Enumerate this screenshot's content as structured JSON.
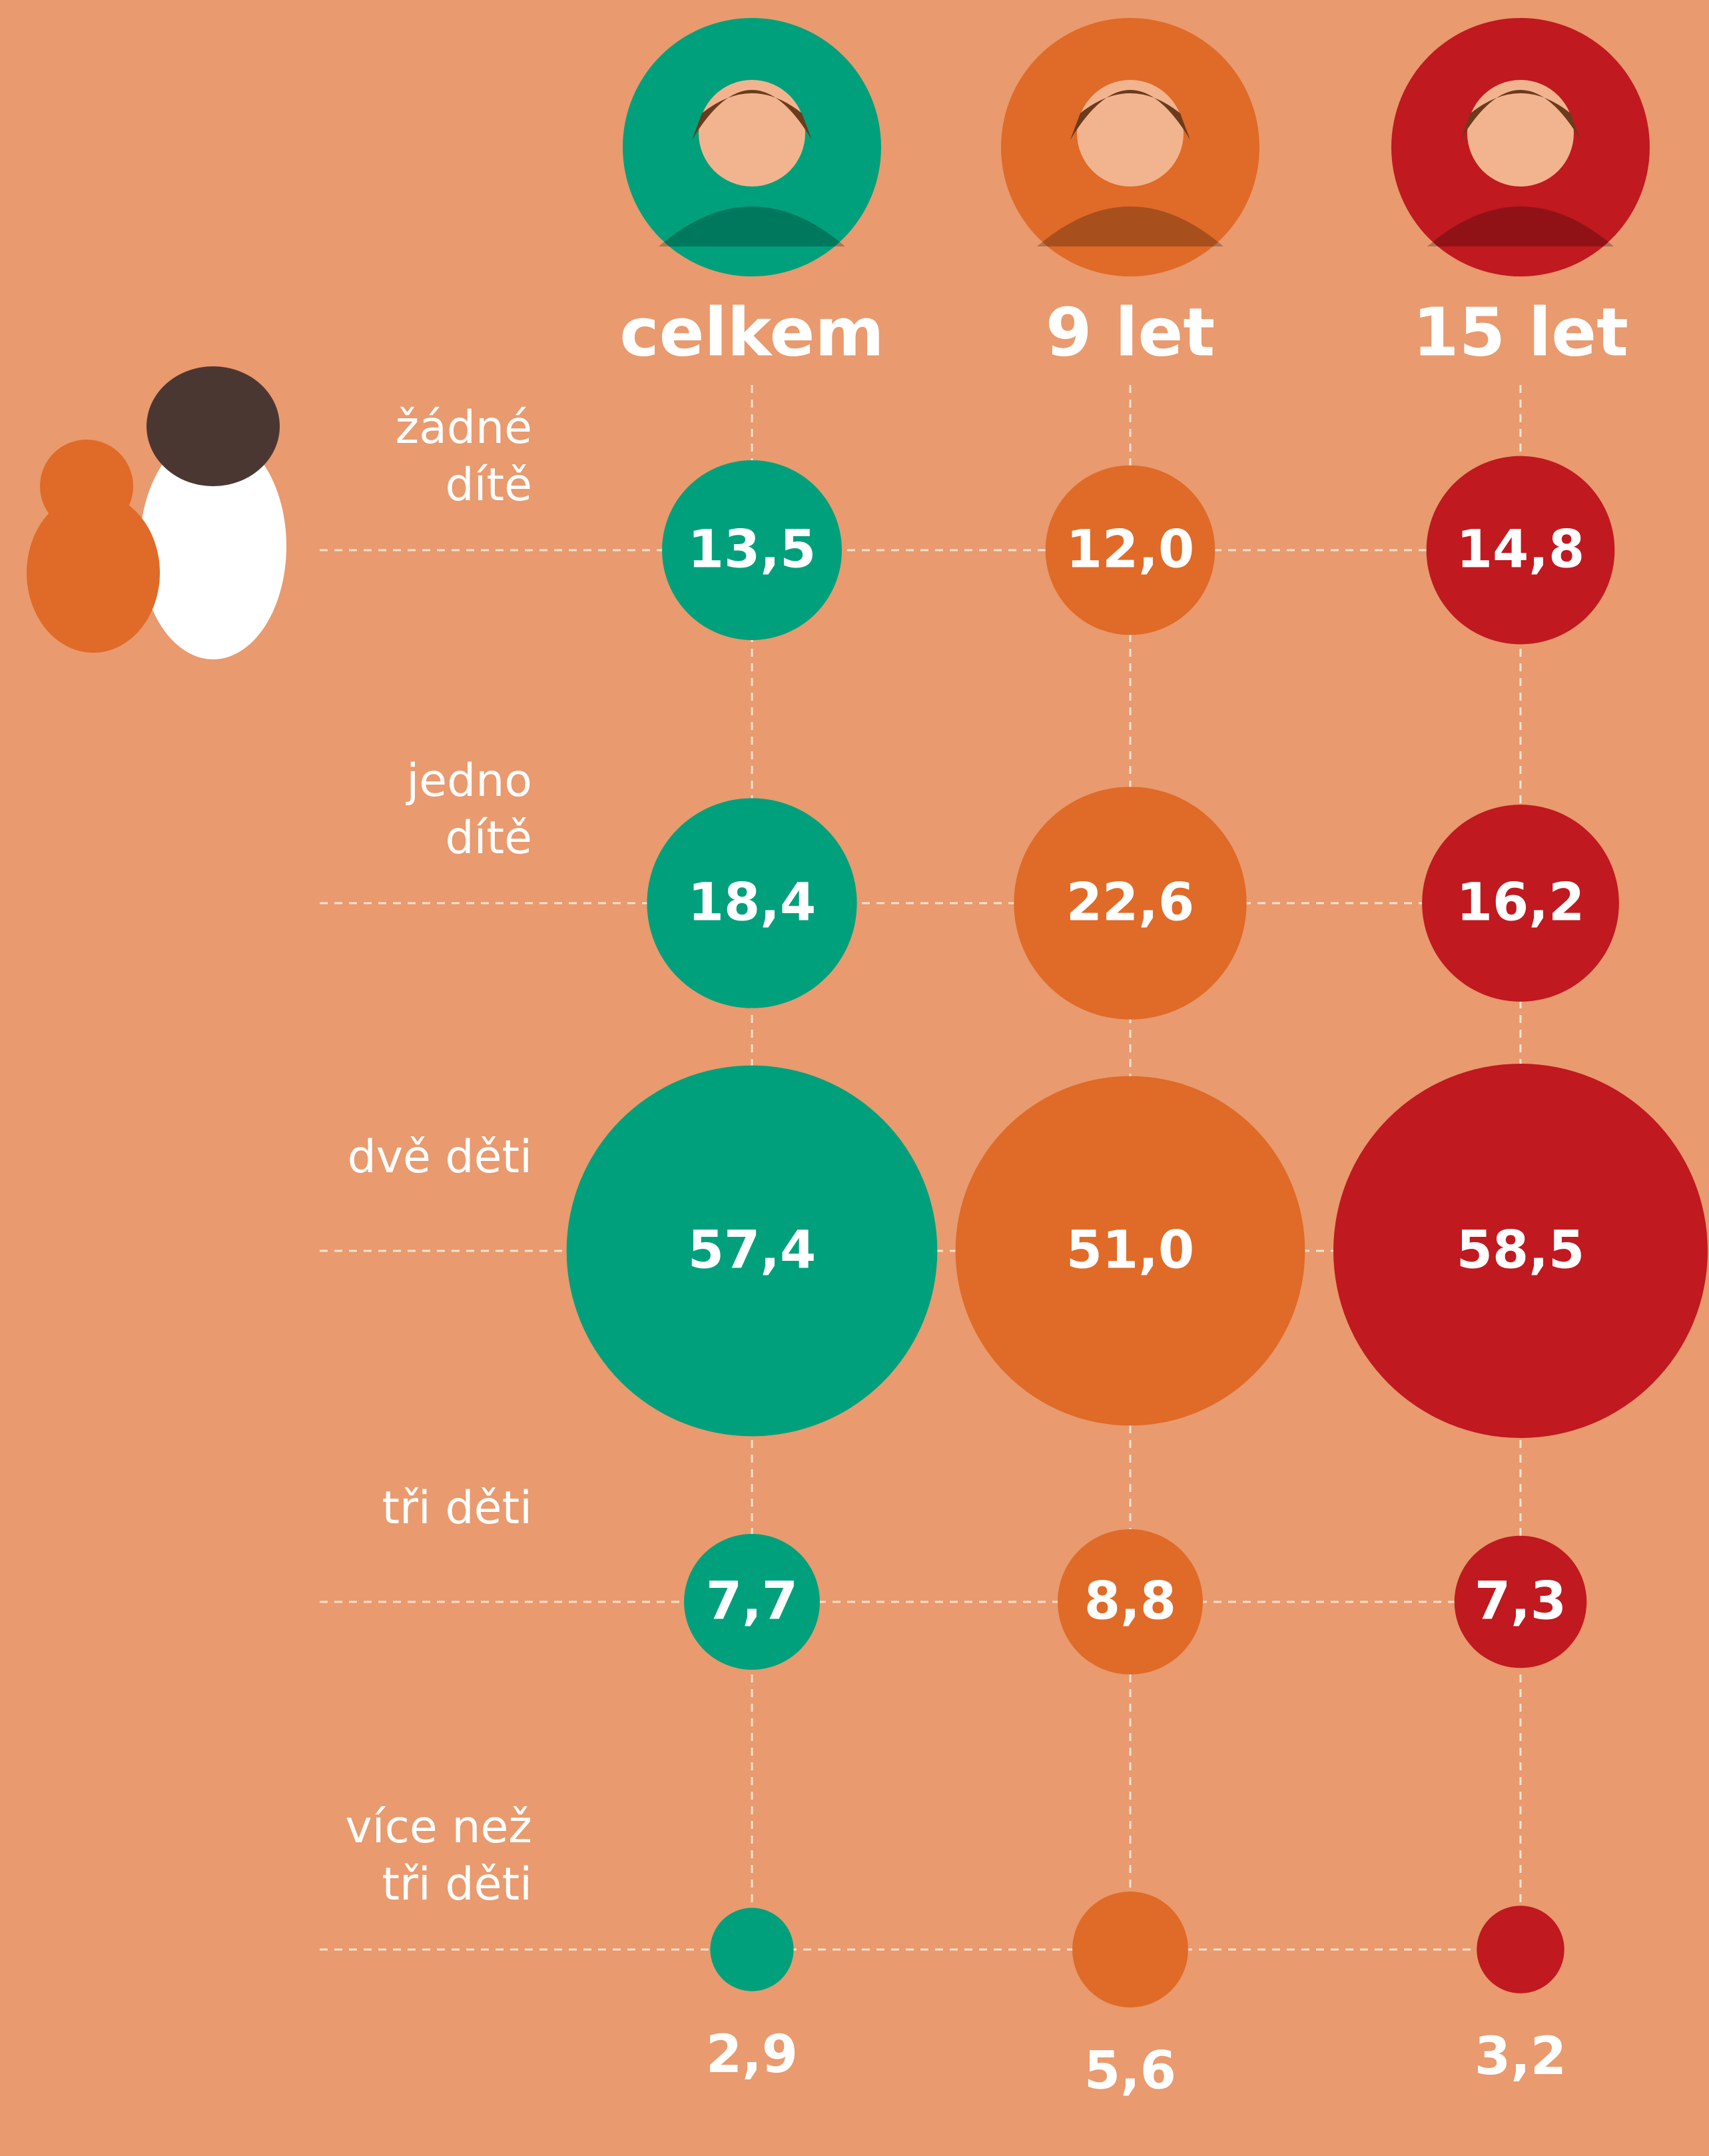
{
  "chart_data": {
    "type": "bubble",
    "categories": [
      "žádné\ndítě",
      "jedno\ndítě",
      "dvě děti",
      "tři děti",
      "více než\ntři děti"
    ],
    "series": [
      {
        "name": "celkem",
        "color": "#00a07c",
        "values": [
          13.5,
          18.4,
          57.4,
          7.7,
          2.9
        ],
        "value_labels": [
          "13,5",
          "18,4",
          "57,4",
          "7,7",
          "2,9"
        ]
      },
      {
        "name": "9 let",
        "color": "#e06a28",
        "values": [
          12.0,
          22.6,
          51.0,
          8.8,
          5.6
        ],
        "value_labels": [
          "12,0",
          "22,6",
          "51,0",
          "8,8",
          "5,6"
        ]
      },
      {
        "name": "15 let",
        "color": "#c0191f",
        "values": [
          14.8,
          16.2,
          58.5,
          7.3,
          3.2
        ],
        "value_labels": [
          "14,8",
          "16,2",
          "58,5",
          "7,3",
          "3,2"
        ]
      }
    ],
    "grid": true
  }
}
